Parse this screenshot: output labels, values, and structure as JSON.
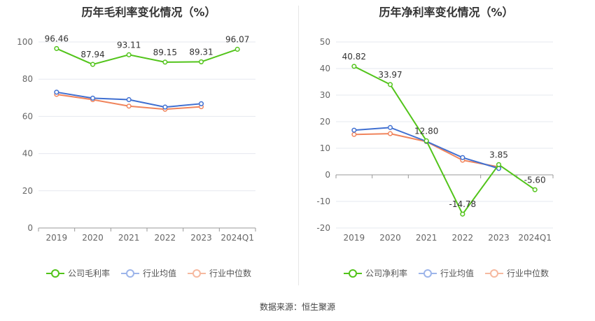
{
  "source_text": "数据来源：恒生聚源",
  "chart_data": [
    {
      "type": "line",
      "title": "历年毛利率变化情况（%）",
      "categories": [
        "2019",
        "2020",
        "2021",
        "2022",
        "2023",
        "2024Q1"
      ],
      "ylim": [
        0,
        100
      ],
      "yticks": [
        0,
        20,
        40,
        60,
        80,
        100
      ],
      "grid": true,
      "legend_position": "bottom",
      "series": [
        {
          "name": "公司毛利率",
          "color": "#52c41a",
          "values": [
            96.46,
            87.94,
            93.11,
            89.15,
            89.31,
            96.07
          ],
          "labels": [
            "96.46",
            "87.94",
            "93.11",
            "89.15",
            "89.31",
            "96.07"
          ]
        },
        {
          "name": "行业均值",
          "color": "#3f6fd1",
          "values": [
            73.0,
            69.8,
            69.0,
            65.0,
            66.8,
            null
          ],
          "labels": []
        },
        {
          "name": "行业中位数",
          "color": "#f0845c",
          "values": [
            71.8,
            69.0,
            65.5,
            63.8,
            65.2,
            null
          ],
          "labels": []
        }
      ]
    },
    {
      "type": "line",
      "title": "历年净利率变化情况（%）",
      "categories": [
        "2019",
        "2020",
        "2021",
        "2022",
        "2023",
        "2024Q1"
      ],
      "ylim": [
        -20,
        50
      ],
      "yticks": [
        -20,
        -10,
        0,
        10,
        20,
        30,
        40,
        50
      ],
      "grid": true,
      "legend_position": "bottom",
      "series": [
        {
          "name": "公司净利率",
          "color": "#52c41a",
          "values": [
            40.82,
            33.97,
            12.8,
            -14.78,
            3.85,
            -5.6
          ],
          "labels": [
            "40.82",
            "33.97",
            "12.80",
            "-14.78",
            "3.85",
            "-5.60"
          ]
        },
        {
          "name": "行业均值",
          "color": "#3f6fd1",
          "values": [
            16.8,
            17.8,
            12.6,
            6.5,
            2.4,
            null
          ],
          "labels": []
        },
        {
          "name": "行业中位数",
          "color": "#f0845c",
          "values": [
            15.2,
            15.5,
            12.5,
            5.5,
            3.0,
            null
          ],
          "labels": []
        }
      ]
    }
  ]
}
